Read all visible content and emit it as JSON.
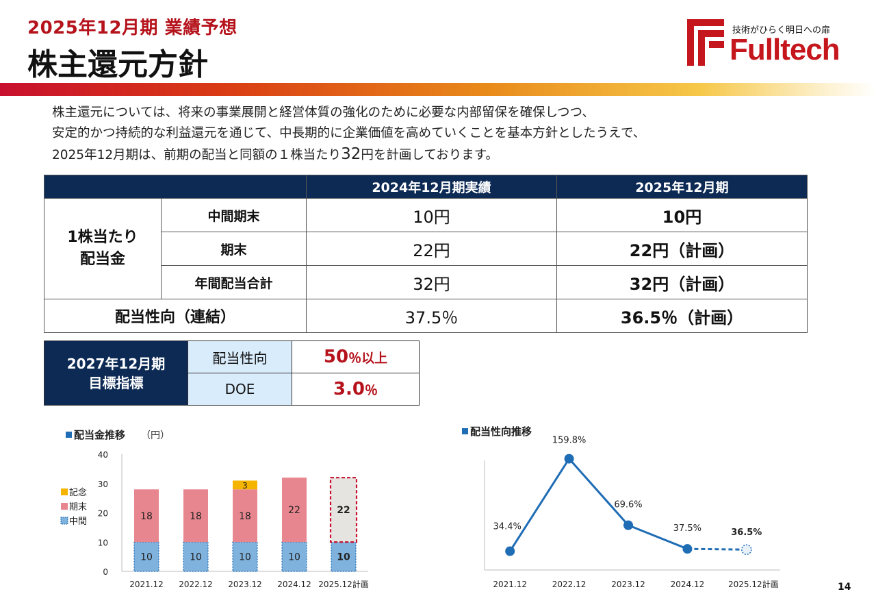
{
  "header": {
    "subtitle": "2025年12月期 業績予想",
    "title": "株主還元方針",
    "logo_tagline": "技術がひらく明日への扉",
    "logo_word": "Fulltech"
  },
  "intro": {
    "line1": "株主還元については、将来の事業展開と経営体質の強化のために必要な内部留保を確保しつつ、",
    "line2": "安定的かつ持続的な利益還元を通じて、中長期的に企業価値を高めていくことを基本方針としたうえで、",
    "line3_a": "2025年12月期は、前期の配当と同額の１株当たり",
    "line3_b": "32",
    "line3_c": "円を計画しております。"
  },
  "dividend_table": {
    "headers": [
      "2024年12月期実績",
      "2025年12月期"
    ],
    "group_label_1": "1株当たり",
    "group_label_2": "配当金",
    "rows": [
      {
        "label": "中間期末",
        "fy2024": "10円",
        "fy2025": "10円"
      },
      {
        "label": "期末",
        "fy2024": "22円",
        "fy2025": "22円（計画）"
      },
      {
        "label": "年間配当合計",
        "fy2024": "32円",
        "fy2025": "32円（計画）"
      }
    ],
    "payout_label": "配当性向（連結）",
    "payout_2024": "37.5％",
    "payout_2025": "36.5％（計画）"
  },
  "target_table": {
    "head_1": "2027年12月期",
    "head_2": "目標指標",
    "payout_label": "配当性向",
    "payout_value": "50",
    "payout_unit": "％以上",
    "doe_label": "DOE",
    "doe_value": "3.0",
    "doe_unit": "％"
  },
  "chart_data": [
    {
      "type": "bar",
      "title": "配当金推移",
      "unit_label": "（円）",
      "categories": [
        "2021.12",
        "2022.12",
        "2023.12",
        "2024.12",
        "2025.12計画"
      ],
      "series": [
        {
          "name": "中間",
          "values": [
            10,
            10,
            10,
            10,
            10
          ],
          "color": "#7fb2dd"
        },
        {
          "name": "期末",
          "values": [
            18,
            18,
            18,
            22,
            22
          ],
          "color": "#e8868f"
        },
        {
          "name": "記念",
          "values": [
            0,
            0,
            3,
            0,
            0
          ],
          "color": "#f5b400"
        }
      ],
      "stacked": true,
      "ylim": [
        0,
        40
      ],
      "yticks": [
        0,
        10,
        20,
        30,
        40
      ],
      "legend": "left",
      "grid": false
    },
    {
      "type": "line",
      "title": "配当性向推移",
      "categories": [
        "2021.12",
        "2022.12",
        "2023.12",
        "2024.12",
        "2025.12計画"
      ],
      "series": [
        {
          "values": [
            34.4,
            159.8,
            69.6,
            37.5,
            36.5
          ],
          "color": "#1f6db5"
        }
      ],
      "labels": [
        "34.4%",
        "159.8%",
        "69.6%",
        "37.5%",
        "36.5%"
      ],
      "grid": false
    }
  ],
  "page_number": "14"
}
